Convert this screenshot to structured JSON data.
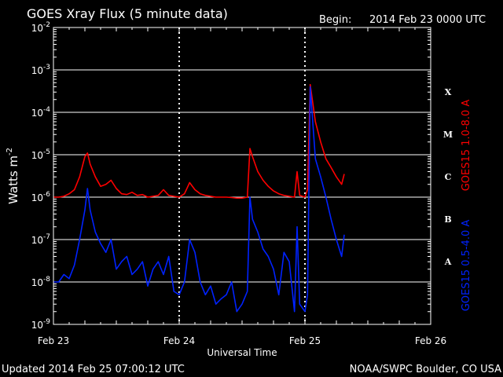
{
  "header": {
    "title": "GOES Xray Flux (5 minute data)",
    "begin_label": "Begin:",
    "begin_value": "2014 Feb 23 0000 UTC"
  },
  "footer": {
    "updated": "Updated 2014 Feb 25 07:00:12 UTC",
    "credit": "NOAA/SWPC Boulder, CO USA"
  },
  "colors": {
    "long_channel": "#ff0000",
    "short_channel": "#0022ff",
    "grid": "#ffffff",
    "background": "#000000"
  },
  "chart_data": {
    "type": "line",
    "title": "GOES Xray Flux (5 minute data)",
    "xlabel": "Universal Time",
    "ylabel": "Watts m-2",
    "y_scale": "log",
    "ylim": [
      1e-09,
      0.01
    ],
    "xlim": [
      0,
      72
    ],
    "x_units": "hours since 2014 Feb 23 00:00 UTC",
    "x_ticks": [
      {
        "x": 0,
        "label": "Feb 23"
      },
      {
        "x": 24,
        "label": "Feb 24"
      },
      {
        "x": 48,
        "label": "Feb 25"
      },
      {
        "x": 72,
        "label": "Feb 26"
      }
    ],
    "y_tick_exponents": [
      -9,
      -8,
      -7,
      -6,
      -5,
      -4,
      -3,
      -2
    ],
    "flare_classes": [
      {
        "label": "X",
        "exp": -4
      },
      {
        "label": "M",
        "exp": -5
      },
      {
        "label": "C",
        "exp": -6
      },
      {
        "label": "B",
        "exp": -7
      },
      {
        "label": "A",
        "exp": -8
      }
    ],
    "grid": "horizontal",
    "series": [
      {
        "name": "GOES15 1.0-8.0 A",
        "color": "#ff0000",
        "x": [
          0,
          1,
          2,
          3,
          4,
          5,
          6,
          6.5,
          7,
          8,
          9,
          10,
          11,
          12,
          13,
          14,
          15,
          16,
          17,
          18,
          19,
          20,
          21,
          22,
          23,
          24,
          25,
          26,
          27,
          28,
          29,
          30,
          31,
          32,
          33,
          34,
          35,
          36,
          37,
          37.5,
          38,
          39,
          40,
          41,
          42,
          43,
          44,
          45,
          46,
          46.5,
          47,
          48,
          48.5,
          49,
          50,
          51,
          52,
          53,
          54,
          55,
          55.5
        ],
        "y": [
          1e-06,
          1e-06,
          1.05e-06,
          1.2e-06,
          1.5e-06,
          3e-06,
          9e-06,
          1.1e-05,
          6e-06,
          3e-06,
          1.8e-06,
          2e-06,
          2.5e-06,
          1.6e-06,
          1.2e-06,
          1.15e-06,
          1.3e-06,
          1.1e-06,
          1.15e-06,
          1e-06,
          1.05e-06,
          1.1e-06,
          1.5e-06,
          1.1e-06,
          1.05e-06,
          1e-06,
          1.2e-06,
          2.2e-06,
          1.5e-06,
          1.2e-06,
          1.1e-06,
          1.05e-06,
          1e-06,
          1e-06,
          1e-06,
          9.8e-07,
          9.5e-07,
          9.5e-07,
          1e-06,
          1.4e-05,
          9e-06,
          4e-06,
          2.5e-06,
          1.8e-06,
          1.4e-06,
          1.2e-06,
          1.1e-06,
          1.05e-06,
          1e-06,
          4e-06,
          1.1e-06,
          1e-06,
          1.5e-06,
          0.00045,
          6e-05,
          2e-05,
          8e-06,
          5e-06,
          3e-06,
          2e-06,
          3.5e-06
        ]
      },
      {
        "name": "GOES15 0.5-4.0 A",
        "color": "#0022ff",
        "x": [
          0,
          1,
          2,
          3,
          4,
          5,
          6,
          6.5,
          7,
          8,
          9,
          10,
          11,
          12,
          13,
          14,
          15,
          16,
          17,
          18,
          19,
          20,
          21,
          22,
          23,
          24,
          25,
          26,
          27,
          28,
          29,
          30,
          31,
          32,
          33,
          34,
          35,
          36,
          37,
          37.5,
          38,
          39,
          40,
          41,
          42,
          43,
          44,
          45,
          46,
          46.5,
          47,
          48,
          48.5,
          49,
          50,
          51,
          52,
          53,
          54,
          55,
          55.5
        ],
        "y": [
          1e-08,
          1e-08,
          1.5e-08,
          1.2e-08,
          2.5e-08,
          1e-07,
          5e-07,
          1.6e-06,
          5e-07,
          1.5e-07,
          8e-08,
          5e-08,
          1e-07,
          2e-08,
          3e-08,
          4e-08,
          1.5e-08,
          2e-08,
          3e-08,
          8e-09,
          2e-08,
          3e-08,
          1.5e-08,
          4e-08,
          6e-09,
          5e-09,
          1e-08,
          1e-07,
          5e-08,
          1e-08,
          5e-09,
          8e-09,
          3e-09,
          4e-09,
          5e-09,
          1e-08,
          2e-09,
          3e-09,
          6e-09,
          1e-06,
          3e-07,
          1.5e-07,
          6e-08,
          4e-08,
          2e-08,
          5e-09,
          5e-08,
          3e-08,
          2e-09,
          2e-07,
          3e-09,
          2e-09,
          5e-09,
          0.0004,
          8e-06,
          3e-06,
          1e-06,
          3e-07,
          1e-07,
          4e-08,
          1.3e-07
        ]
      }
    ]
  }
}
